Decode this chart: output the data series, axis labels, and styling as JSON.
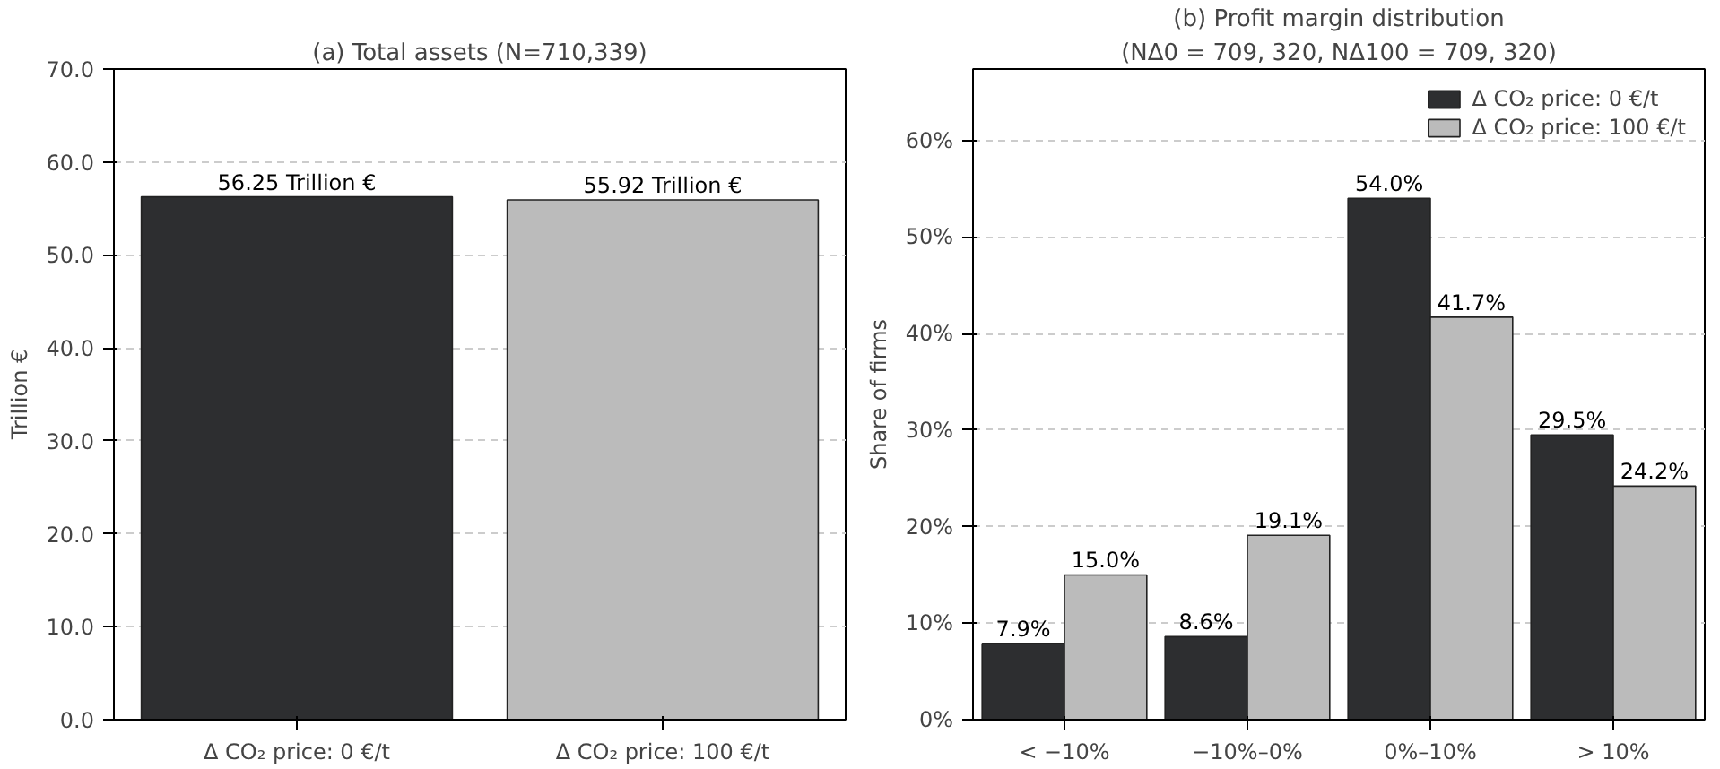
{
  "chart_data": [
    {
      "type": "bar",
      "title": "(a) Total assets (N=710,339)",
      "ylabel": "Trillion €",
      "categories": [
        "Δ CO₂ price: 0 €/t",
        "Δ CO₂ price: 100 €/t"
      ],
      "values": [
        56.25,
        55.92
      ],
      "colors": [
        "#2d2e30",
        "#bbbbbb"
      ],
      "value_labels": [
        "56.25 Trillion €",
        "55.92 Trillion €"
      ],
      "ylim": [
        0,
        70
      ],
      "yticks": [
        {
          "value": 0,
          "label": "0.0"
        },
        {
          "value": 10,
          "label": "10.0"
        },
        {
          "value": 20,
          "label": "20.0"
        },
        {
          "value": 30,
          "label": "30.0"
        },
        {
          "value": 40,
          "label": "40.0"
        },
        {
          "value": 50,
          "label": "50.0"
        },
        {
          "value": 60,
          "label": "60.0"
        },
        {
          "value": 70,
          "label": "70.0"
        }
      ],
      "grid": "y"
    },
    {
      "type": "bar",
      "title": "(b) Profit margin distribution",
      "subtitle": "(NΔ0 = 709, 320, NΔ100 = 709, 320)",
      "ylabel": "Share of firms",
      "categories": [
        "< −10%",
        "−10%–0%",
        "0%–10%",
        "> 10%"
      ],
      "series": [
        {
          "name": "Δ CO₂ price: 0 €/t",
          "color": "#2d2e30",
          "values": [
            7.9,
            8.6,
            54.0,
            29.5
          ],
          "value_labels": [
            "7.9%",
            "8.6%",
            "54.0%",
            "29.5%"
          ]
        },
        {
          "name": "Δ CO₂ price: 100 €/t",
          "color": "#bbbbbb",
          "values": [
            15.0,
            19.1,
            41.7,
            24.2
          ],
          "value_labels": [
            "15.0%",
            "19.1%",
            "41.7%",
            "24.2%"
          ]
        }
      ],
      "ylim": [
        0,
        67.4
      ],
      "yticks": [
        {
          "value": 0,
          "label": "0%"
        },
        {
          "value": 10,
          "label": "10%"
        },
        {
          "value": 20,
          "label": "20%"
        },
        {
          "value": 30,
          "label": "30%"
        },
        {
          "value": 40,
          "label": "40%"
        },
        {
          "value": 50,
          "label": "50%"
        },
        {
          "value": 60,
          "label": "60%"
        }
      ],
      "grid": "y",
      "legend": "top right"
    }
  ]
}
